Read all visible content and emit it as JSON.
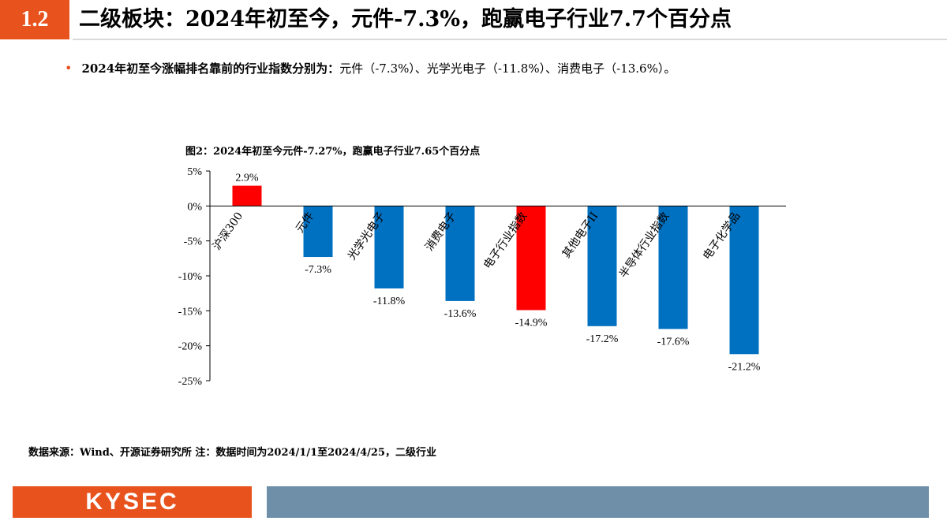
{
  "header": {
    "section_number": "1.2",
    "title": "二级板块：2024年初至今，元件-7.3%，跑赢电子行业7.7个百分点"
  },
  "bullet": {
    "lead": "2024年初至今涨幅排名靠前的行业指数分别为：",
    "body": "元件（-7.3%）、光学光电子（-11.8%）、消费电子（-13.6%）。"
  },
  "chart_title": "图2：2024年初至今元件-7.27%，跑赢电子行业7.65个百分点",
  "chart_data": {
    "type": "bar",
    "title": "图2：2024年初至今元件-7.27%，跑赢电子行业7.65个百分点",
    "categories": [
      "沪深300",
      "元件",
      "光学光电子",
      "消费电子",
      "电子行业指数",
      "其他电子II",
      "半导体行业指数",
      "电子化学品"
    ],
    "values": [
      2.9,
      -7.3,
      -11.8,
      -13.6,
      -14.9,
      -17.2,
      -17.6,
      -21.2
    ],
    "data_labels": [
      "2.9%",
      "-7.3%",
      "-11.8%",
      "-13.6%",
      "-14.9%",
      "-17.2%",
      "-17.6%",
      "-21.2%"
    ],
    "ylim": [
      -25,
      5
    ],
    "yticks": [
      5,
      0,
      -5,
      -10,
      -15,
      -20,
      -25
    ],
    "ytick_labels": [
      "5%",
      "0%",
      "-5%",
      "-10%",
      "-15%",
      "-20%",
      "-25%"
    ],
    "bar_colors": [
      "#ff0000",
      "#0070c0",
      "#0070c0",
      "#0070c0",
      "#ff0000",
      "#0070c0",
      "#0070c0",
      "#0070c0"
    ],
    "grid": false,
    "legend": "none"
  },
  "footnote": "数据来源：Wind、开源证券研究所 注：数据时间为2024/1/1至2024/4/25，二级行业",
  "footer": {
    "logo_text": "KYSEC"
  },
  "colors": {
    "accent": "#e8521d",
    "footer_bar": "#6e8fa7",
    "highlight_bar": "#ff0000",
    "normal_bar": "#0070c0"
  }
}
